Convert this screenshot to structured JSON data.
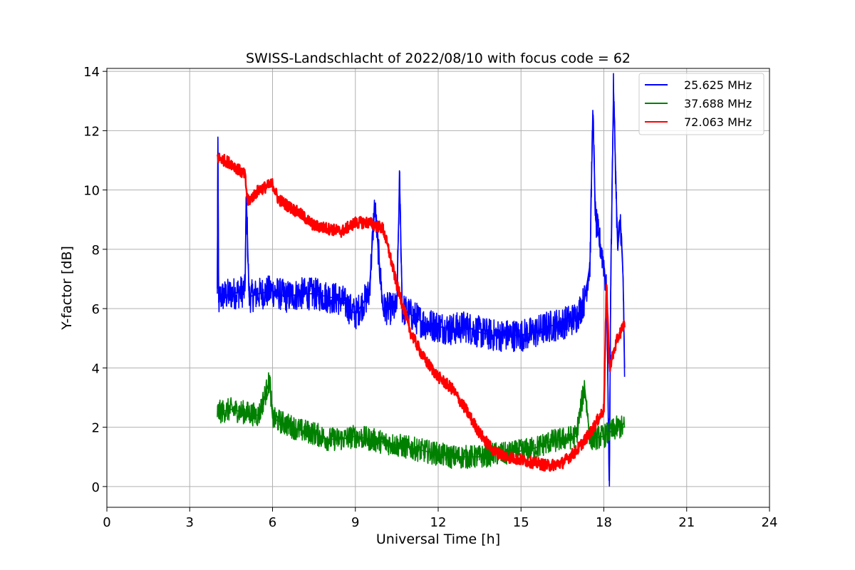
{
  "chart_data": {
    "type": "line",
    "title": "SWISS-Landschlacht of 2022/08/10 with focus code = 62",
    "xlabel": "Universal Time [h]",
    "ylabel": "Y-factor [dB]",
    "xlim": [
      0,
      24
    ],
    "ylim": [
      -0.7,
      14.1
    ],
    "xticks": [
      0,
      3,
      6,
      9,
      12,
      15,
      18,
      21,
      24
    ],
    "yticks": [
      0,
      2,
      4,
      6,
      8,
      10,
      12,
      14
    ],
    "grid": true,
    "legend_position": "top-right",
    "series": [
      {
        "name": "25.625 MHz",
        "color": "#0000ff",
        "noise": 0.55,
        "x": [
          4.0,
          4.02,
          4.05,
          4.1,
          4.5,
          5.0,
          5.05,
          5.15,
          5.5,
          6.0,
          6.5,
          7.0,
          7.5,
          8.0,
          8.5,
          9.0,
          9.5,
          9.7,
          10.0,
          10.5,
          10.6,
          10.7,
          11.0,
          11.5,
          12.0,
          12.5,
          13.0,
          13.5,
          14.0,
          14.5,
          15.0,
          15.5,
          16.0,
          16.5,
          17.0,
          17.3,
          17.5,
          17.6,
          17.7,
          17.9,
          18.0,
          18.1,
          18.2,
          18.25,
          18.35,
          18.5,
          18.6,
          18.7,
          18.75
        ],
        "y": [
          6.5,
          11.8,
          6.2,
          6.4,
          6.5,
          6.6,
          9.8,
          6.4,
          6.5,
          6.6,
          6.4,
          6.5,
          6.5,
          6.4,
          6.3,
          5.8,
          6.5,
          9.5,
          6.0,
          6.0,
          10.4,
          6.0,
          5.8,
          5.5,
          5.4,
          5.3,
          5.4,
          5.2,
          5.1,
          5.1,
          5.1,
          5.2,
          5.4,
          5.5,
          5.7,
          6.3,
          7.5,
          12.7,
          9.0,
          8.0,
          7.5,
          6.5,
          0.0,
          7.0,
          13.4,
          8.0,
          9.0,
          7.0,
          3.7
        ]
      },
      {
        "name": "37.688 MHz",
        "color": "#008000",
        "noise": 0.4,
        "x": [
          4.0,
          4.5,
          5.0,
          5.5,
          5.9,
          6.0,
          6.5,
          7.0,
          7.5,
          8.0,
          8.5,
          9.0,
          9.5,
          10.0,
          10.5,
          11.0,
          11.5,
          12.0,
          12.5,
          13.0,
          13.5,
          14.0,
          14.5,
          15.0,
          15.5,
          16.0,
          16.5,
          17.0,
          17.3,
          17.5,
          18.0,
          18.5,
          18.75
        ],
        "y": [
          2.5,
          2.6,
          2.5,
          2.4,
          3.6,
          2.3,
          2.1,
          1.9,
          1.8,
          1.6,
          1.6,
          1.7,
          1.6,
          1.5,
          1.4,
          1.3,
          1.2,
          1.1,
          1.0,
          1.0,
          1.0,
          1.1,
          1.1,
          1.2,
          1.3,
          1.5,
          1.6,
          1.7,
          3.4,
          1.6,
          1.7,
          2.0,
          2.0
        ]
      },
      {
        "name": "72.063 MHz",
        "color": "#ff0000",
        "noise": 0.2,
        "x": [
          4.0,
          4.5,
          5.0,
          5.1,
          5.5,
          6.0,
          6.2,
          6.5,
          7.0,
          7.5,
          8.0,
          8.5,
          9.0,
          9.5,
          10.0,
          10.2,
          10.5,
          11.0,
          11.5,
          12.0,
          12.5,
          13.0,
          13.5,
          14.0,
          14.5,
          15.0,
          15.5,
          16.0,
          16.5,
          17.0,
          17.5,
          18.0,
          18.1,
          18.2,
          18.5,
          18.75
        ],
        "y": [
          11.1,
          10.9,
          10.5,
          9.6,
          10.0,
          10.2,
          9.7,
          9.5,
          9.2,
          8.8,
          8.7,
          8.6,
          8.9,
          8.9,
          8.7,
          8.0,
          6.8,
          5.2,
          4.3,
          3.7,
          3.3,
          2.6,
          1.8,
          1.2,
          1.0,
          0.9,
          0.8,
          0.7,
          0.8,
          1.2,
          1.8,
          2.6,
          6.8,
          4.0,
          5.0,
          5.5
        ]
      }
    ]
  }
}
